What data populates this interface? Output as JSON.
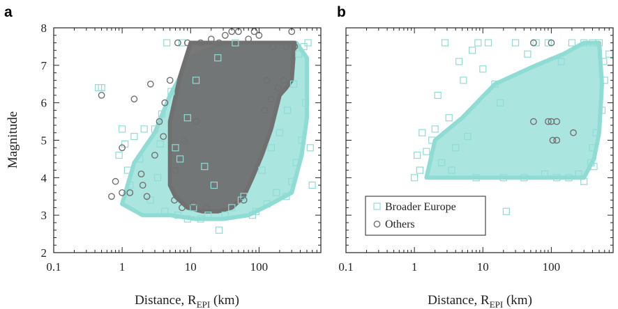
{
  "chart_data": [
    {
      "panel": "a",
      "type": "scatter",
      "xlabel_main": "Distance, R",
      "xlabel_sub": "EPI",
      "xlabel_unit": " (km)",
      "ylabel": "Magnitude",
      "xscale": "log",
      "xlim": [
        0.1,
        800
      ],
      "ylim": [
        2,
        8
      ],
      "xticks": [
        "0.1",
        "1",
        "10",
        "100"
      ],
      "xtick_values": [
        0.1,
        1,
        10,
        100
      ],
      "yticks": [
        "2",
        "3",
        "4",
        "5",
        "6",
        "7",
        "8"
      ],
      "ytick_values": [
        2,
        3,
        4,
        5,
        6,
        7,
        8
      ],
      "series": [
        {
          "marker": "square-open",
          "color": "#8fdcd5",
          "points": [
            [
              0.45,
              6.4
            ],
            [
              0.5,
              6.4
            ],
            [
              0.9,
              4.6
            ],
            [
              1.0,
              5.3
            ],
            [
              1.1,
              4.9
            ],
            [
              1.2,
              4.2
            ],
            [
              1.3,
              3.8
            ],
            [
              1.5,
              5.1
            ],
            [
              1.8,
              4.5
            ],
            [
              2.1,
              5.3
            ],
            [
              2.6,
              3.4
            ],
            [
              3.0,
              5.3
            ],
            [
              3.3,
              4.0
            ],
            [
              3.8,
              5.7
            ],
            [
              4.2,
              3.1
            ],
            [
              4.5,
              7.6
            ],
            [
              5.2,
              6.3
            ],
            [
              6.0,
              4.8
            ],
            [
              6.5,
              3.0
            ],
            [
              7.5,
              7.6
            ],
            [
              9.0,
              2.9
            ],
            [
              11,
              3.2
            ],
            [
              14,
              2.9
            ],
            [
              18,
              3.0
            ],
            [
              22,
              3.8
            ],
            [
              26,
              2.6
            ],
            [
              32,
              3.0
            ],
            [
              40,
              3.2
            ],
            [
              55,
              3.4
            ],
            [
              80,
              3.0
            ],
            [
              110,
              4.2
            ],
            [
              150,
              4.8
            ],
            [
              200,
              5.2
            ],
            [
              260,
              5.8
            ],
            [
              320,
              6.5
            ],
            [
              380,
              7.3
            ],
            [
              450,
              7.5
            ],
            [
              520,
              7.6
            ],
            [
              560,
              4.8
            ],
            [
              600,
              3.8
            ],
            [
              480,
              6.0
            ],
            [
              420,
              5.0
            ],
            [
              350,
              4.4
            ],
            [
              300,
              3.9
            ],
            [
              250,
              3.5
            ],
            [
              180,
              3.6
            ],
            [
              130,
              3.3
            ],
            [
              90,
              3.1
            ],
            [
              60,
              3.5
            ],
            [
              16,
              4.3
            ],
            [
              7,
              4.5
            ],
            [
              3.6,
              4.9
            ],
            [
              9,
              5.6
            ],
            [
              12,
              6.6
            ],
            [
              25,
              7.2
            ],
            [
              45,
              7.6
            ]
          ]
        },
        {
          "marker": "circle-open",
          "color": "#707070",
          "points": [
            [
              0.5,
              6.2
            ],
            [
              0.7,
              3.5
            ],
            [
              0.8,
              3.9
            ],
            [
              1.0,
              3.6
            ],
            [
              1.0,
              4.8
            ],
            [
              1.3,
              3.6
            ],
            [
              1.5,
              6.1
            ],
            [
              1.9,
              4.1
            ],
            [
              2.3,
              3.5
            ],
            [
              2.6,
              6.5
            ],
            [
              3.0,
              4.6
            ],
            [
              3.5,
              5.5
            ],
            [
              4.2,
              6.0
            ],
            [
              5.0,
              6.6
            ],
            [
              5.8,
              3.4
            ],
            [
              6.5,
              7.6
            ],
            [
              7.5,
              3.2
            ],
            [
              9,
              7.6
            ],
            [
              11,
              3.3
            ],
            [
              14,
              7.6
            ],
            [
              17,
              3.2
            ],
            [
              20,
              7.7
            ],
            [
              26,
              7.6
            ],
            [
              32,
              7.8
            ],
            [
              40,
              7.9
            ],
            [
              50,
              7.9
            ],
            [
              60,
              3.4
            ],
            [
              70,
              7.7
            ],
            [
              85,
              7.9
            ],
            [
              100,
              7.8
            ],
            [
              130,
              6.6
            ],
            [
              160,
              7.5
            ],
            [
              190,
              6.4
            ],
            [
              250,
              7.5
            ],
            [
              300,
              7.9
            ],
            [
              330,
              7.5
            ],
            [
              230,
              6.6
            ],
            [
              150,
              6.1
            ],
            [
              120,
              5.8
            ],
            [
              8,
              5.0
            ],
            [
              12,
              5.5
            ],
            [
              6,
              4.2
            ],
            [
              4,
              5.1
            ],
            [
              2.0,
              3.8
            ]
          ]
        }
      ],
      "dense_regions": [
        {
          "series": 0,
          "color": "#8fdcd5",
          "polygon": [
            [
              1.0,
              3.3
            ],
            [
              1.5,
              4.4
            ],
            [
              3,
              5.2
            ],
            [
              5,
              6.2
            ],
            [
              10,
              7.2
            ],
            [
              30,
              7.6
            ],
            [
              100,
              7.6
            ],
            [
              350,
              7.6
            ],
            [
              500,
              7.2
            ],
            [
              500,
              5.6
            ],
            [
              420,
              4.6
            ],
            [
              300,
              3.6
            ],
            [
              150,
              3.3
            ],
            [
              70,
              3.0
            ],
            [
              30,
              2.9
            ],
            [
              12,
              2.9
            ],
            [
              5,
              3.0
            ],
            [
              2,
              3.0
            ]
          ]
        },
        {
          "series": 1,
          "color": "#707070",
          "polygon": [
            [
              5,
              3.8
            ],
            [
              5,
              5.5
            ],
            [
              7,
              6.7
            ],
            [
              10,
              7.6
            ],
            [
              30,
              7.6
            ],
            [
              80,
              7.6
            ],
            [
              200,
              7.6
            ],
            [
              330,
              7.6
            ],
            [
              300,
              6.6
            ],
            [
              250,
              6.4
            ],
            [
              200,
              6.2
            ],
            [
              150,
              5.3
            ],
            [
              110,
              4.6
            ],
            [
              80,
              4.0
            ],
            [
              60,
              3.5
            ],
            [
              40,
              3.2
            ],
            [
              25,
              3.1
            ],
            [
              15,
              3.1
            ],
            [
              9,
              3.2
            ],
            [
              6,
              3.5
            ]
          ]
        }
      ]
    },
    {
      "panel": "b",
      "type": "scatter",
      "xlabel_main": "Distance, R",
      "xlabel_sub": "EPI",
      "xlabel_unit": " (km)",
      "xscale": "log",
      "xlim": [
        0.1,
        800
      ],
      "ylim": [
        2,
        8
      ],
      "xticks": [
        "0.1",
        "1",
        "10",
        "100"
      ],
      "xtick_values": [
        0.1,
        1,
        10,
        100
      ],
      "legend": {
        "position": "lower-left",
        "entries": [
          {
            "label": "Broader Europe",
            "marker": "square-open",
            "color": "#8fdcd5"
          },
          {
            "label": "Others",
            "marker": "circle-open",
            "color": "#707070"
          }
        ]
      },
      "series": [
        {
          "marker": "square-open",
          "color": "#8fdcd5",
          "points": [
            [
              1.0,
              4.0
            ],
            [
              1.2,
              4.2
            ],
            [
              1.5,
              4.7
            ],
            [
              1.8,
              5.0
            ],
            [
              2.0,
              5.3
            ],
            [
              2.2,
              6.2
            ],
            [
              2.8,
              7.6
            ],
            [
              3.2,
              5.6
            ],
            [
              4.0,
              4.8
            ],
            [
              4.5,
              7.1
            ],
            [
              5.2,
              6.6
            ],
            [
              6.0,
              5.1
            ],
            [
              7.0,
              7.4
            ],
            [
              8.5,
              7.6
            ],
            [
              10,
              6.9
            ],
            [
              12,
              7.6
            ],
            [
              15,
              6.5
            ],
            [
              18,
              6.0
            ],
            [
              22,
              3.1
            ],
            [
              30,
              7.6
            ],
            [
              45,
              7.3
            ],
            [
              60,
              7.6
            ],
            [
              90,
              7.6
            ],
            [
              140,
              7.1
            ],
            [
              200,
              7.6
            ],
            [
              300,
              7.6
            ],
            [
              400,
              7.6
            ],
            [
              500,
              7.6
            ],
            [
              580,
              7.1
            ],
            [
              600,
              6.6
            ],
            [
              550,
              5.8
            ],
            [
              450,
              5.2
            ],
            [
              400,
              4.8
            ],
            [
              420,
              4.3
            ],
            [
              380,
              4.4
            ],
            [
              300,
              3.9
            ],
            [
              250,
              4.1
            ],
            [
              180,
              4.0
            ],
            [
              120,
              4.0
            ],
            [
              80,
              4.1
            ],
            [
              40,
              4.0
            ],
            [
              20,
              4.0
            ],
            [
              8,
              4.0
            ],
            [
              3.5,
              4.2
            ],
            [
              2.5,
              4.4
            ],
            [
              1.1,
              4.6
            ],
            [
              1.3,
              5.2
            ],
            [
              700,
              7.3
            ]
          ]
        },
        {
          "marker": "circle-open",
          "color": "#707070",
          "points": [
            [
              55,
              7.6
            ],
            [
              100,
              7.6
            ],
            [
              55,
              5.5
            ],
            [
              90,
              5.5
            ],
            [
              100,
              5.5
            ],
            [
              120,
              5.5
            ],
            [
              105,
              5.0
            ],
            [
              120,
              5.0
            ],
            [
              210,
              5.2
            ]
          ]
        }
      ],
      "dense_regions": [
        {
          "series": 0,
          "color": "#8fdcd5",
          "polygon": [
            [
              1.5,
              4.0
            ],
            [
              2,
              5.0
            ],
            [
              5,
              5.6
            ],
            [
              15,
              6.5
            ],
            [
              60,
              7.0
            ],
            [
              150,
              7.3
            ],
            [
              300,
              7.6
            ],
            [
              500,
              7.6
            ],
            [
              550,
              6.5
            ],
            [
              500,
              5.2
            ],
            [
              420,
              4.5
            ],
            [
              300,
              4.0
            ],
            [
              100,
              4.0
            ],
            [
              30,
              4.0
            ],
            [
              5,
              4.0
            ]
          ]
        }
      ]
    }
  ]
}
